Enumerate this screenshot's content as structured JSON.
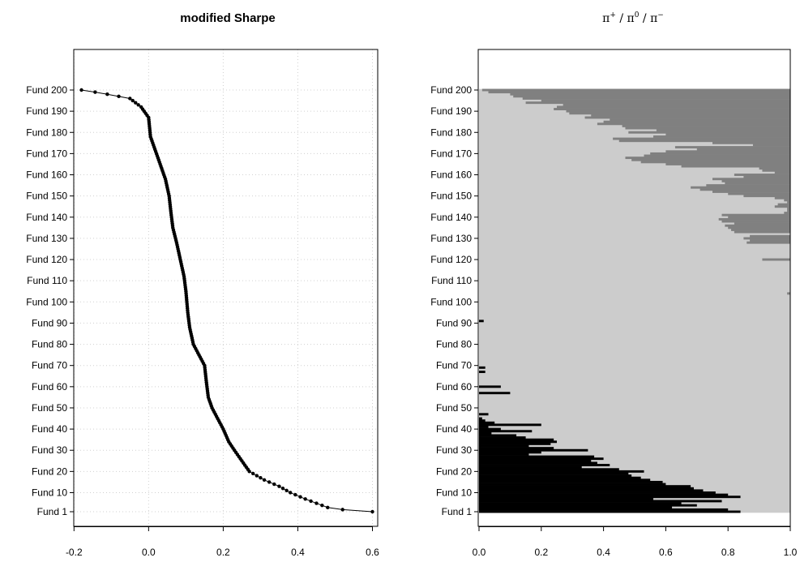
{
  "chart_data": [
    {
      "type": "scatter",
      "title": "modified Sharpe",
      "xlim": [
        -0.2,
        0.62
      ],
      "x_ticks": [
        -0.2,
        0.0,
        0.2,
        0.4,
        0.6
      ],
      "x_tick_labels": [
        "-0.2",
        "0.0",
        "0.2",
        "0.4",
        "0.6"
      ],
      "ylim": [
        1,
        200
      ],
      "y_ticks": [
        1,
        10,
        20,
        30,
        40,
        50,
        60,
        70,
        80,
        90,
        100,
        110,
        120,
        130,
        140,
        150,
        160,
        170,
        180,
        190,
        200
      ],
      "y_tick_labels": [
        "Fund 1",
        "Fund 10",
        "Fund 20",
        "Fund 30",
        "Fund 40",
        "Fund 50",
        "Fund 60",
        "Fund 70",
        "Fund 80",
        "Fund 90",
        "Fund 100",
        "Fund 110",
        "Fund 120",
        "Fund 130",
        "Fund 140",
        "Fund 150",
        "Fund 160",
        "Fund 170",
        "Fund 180",
        "Fund 190",
        "Fund 200"
      ],
      "grid": true,
      "curve_anchors": [
        [
          0.6,
          1
        ],
        [
          0.52,
          2
        ],
        [
          0.48,
          3
        ],
        [
          0.45,
          5
        ],
        [
          0.42,
          7
        ],
        [
          0.38,
          10
        ],
        [
          0.35,
          13
        ],
        [
          0.31,
          16
        ],
        [
          0.27,
          20
        ],
        [
          0.25,
          25
        ],
        [
          0.23,
          30
        ],
        [
          0.215,
          34
        ],
        [
          0.2,
          40
        ],
        [
          0.185,
          45
        ],
        [
          0.17,
          50
        ],
        [
          0.16,
          55
        ],
        [
          0.155,
          62
        ],
        [
          0.15,
          70
        ],
        [
          0.135,
          75
        ],
        [
          0.12,
          80
        ],
        [
          0.11,
          88
        ],
        [
          0.105,
          95
        ],
        [
          0.1,
          105
        ],
        [
          0.095,
          112
        ],
        [
          0.085,
          120
        ],
        [
          0.075,
          128
        ],
        [
          0.065,
          135
        ],
        [
          0.06,
          142
        ],
        [
          0.055,
          150
        ],
        [
          0.045,
          158
        ],
        [
          0.035,
          163
        ],
        [
          0.025,
          168
        ],
        [
          0.005,
          178
        ],
        [
          0.0,
          187
        ],
        [
          -0.02,
          192
        ],
        [
          -0.05,
          196
        ],
        [
          -0.08,
          197
        ],
        [
          -0.12,
          198.3
        ],
        [
          -0.15,
          199.2
        ],
        [
          -0.18,
          200
        ]
      ]
    },
    {
      "type": "bar",
      "orientation": "horizontal",
      "stacked": true,
      "title_parts": [
        "π",
        "+",
        " / π",
        "0",
        " / π",
        "−"
      ],
      "xlim": [
        0,
        1
      ],
      "x_ticks": [
        0.0,
        0.2,
        0.4,
        0.6,
        0.8,
        1.0
      ],
      "x_tick_labels": [
        "0.0",
        "0.2",
        "0.4",
        "0.6",
        "0.8",
        "1.0"
      ],
      "y_ticks": [
        1,
        10,
        20,
        30,
        40,
        50,
        60,
        70,
        80,
        90,
        100,
        110,
        120,
        130,
        140,
        150,
        160,
        170,
        180,
        190,
        200
      ],
      "y_tick_labels": [
        "Fund 1",
        "Fund 10",
        "Fund 20",
        "Fund 30",
        "Fund 40",
        "Fund 50",
        "Fund 60",
        "Fund 70",
        "Fund 80",
        "Fund 90",
        "Fund 100",
        "Fund 110",
        "Fund 120",
        "Fund 130",
        "Fund 140",
        "Fund 150",
        "Fund 160",
        "Fund 170",
        "Fund 180",
        "Fund 190",
        "Fund 200"
      ],
      "colors": {
        "pi_plus": "#000000",
        "pi_zero": "#cccccc",
        "pi_minus": "#808080"
      },
      "pi_plus": [
        [
          1,
          0.84
        ],
        [
          2,
          0.8
        ],
        [
          3,
          0.62
        ],
        [
          4,
          0.7
        ],
        [
          5,
          0.65
        ],
        [
          6,
          0.78
        ],
        [
          7,
          0.56
        ],
        [
          8,
          0.84
        ],
        [
          9,
          0.8
        ],
        [
          10,
          0.76
        ],
        [
          11,
          0.72
        ],
        [
          12,
          0.69
        ],
        [
          13,
          0.68
        ],
        [
          14,
          0.6
        ],
        [
          15,
          0.59
        ],
        [
          16,
          0.55
        ],
        [
          17,
          0.52
        ],
        [
          18,
          0.49
        ],
        [
          19,
          0.48
        ],
        [
          20,
          0.53
        ],
        [
          21,
          0.45
        ],
        [
          22,
          0.33
        ],
        [
          23,
          0.42
        ],
        [
          24,
          0.38
        ],
        [
          25,
          0.36
        ],
        [
          26,
          0.4
        ],
        [
          27,
          0.37
        ],
        [
          28,
          0.16
        ],
        [
          29,
          0.2
        ],
        [
          30,
          0.35
        ],
        [
          31,
          0.24
        ],
        [
          32,
          0.16
        ],
        [
          33,
          0.23
        ],
        [
          34,
          0.25
        ],
        [
          35,
          0.24
        ],
        [
          36,
          0.15
        ],
        [
          37,
          0.12
        ],
        [
          38,
          0.04
        ],
        [
          39,
          0.17
        ],
        [
          40,
          0.07
        ],
        [
          41,
          0.03
        ],
        [
          42,
          0.2
        ],
        [
          43,
          0.05
        ],
        [
          44,
          0.02
        ],
        [
          45,
          0.01
        ],
        [
          46,
          0.0
        ],
        [
          47,
          0.03
        ],
        [
          48,
          0.0
        ],
        [
          49,
          0.0
        ],
        [
          50,
          0.0
        ],
        [
          51,
          0.0
        ],
        [
          52,
          0.0
        ],
        [
          53,
          0.0
        ],
        [
          54,
          0.0
        ],
        [
          55,
          0.0
        ],
        [
          56,
          0.0
        ],
        [
          57,
          0.1
        ],
        [
          58,
          0.0
        ],
        [
          59,
          0.0
        ],
        [
          60,
          0.07
        ],
        [
          61,
          0.0
        ],
        [
          62,
          0.0
        ],
        [
          63,
          0.0
        ],
        [
          64,
          0.0
        ],
        [
          65,
          0.0
        ],
        [
          66,
          0.0
        ],
        [
          67,
          0.02
        ],
        [
          68,
          0.0
        ],
        [
          69,
          0.02
        ],
        [
          70,
          0.0
        ],
        [
          71,
          0.0
        ],
        [
          72,
          0.0
        ],
        [
          73,
          0.0
        ],
        [
          74,
          0.0
        ],
        [
          75,
          0.0
        ],
        [
          76,
          0.0
        ],
        [
          77,
          0.0
        ],
        [
          78,
          0.0
        ],
        [
          79,
          0.0
        ],
        [
          80,
          0.0
        ],
        [
          81,
          0.0
        ],
        [
          82,
          0.0
        ],
        [
          83,
          0.0
        ],
        [
          84,
          0.0
        ],
        [
          85,
          0.0
        ],
        [
          86,
          0.0
        ],
        [
          87,
          0.0
        ],
        [
          88,
          0.0
        ],
        [
          89,
          0.0
        ],
        [
          90,
          0.0
        ],
        [
          91,
          0.015
        ],
        [
          92,
          0.0
        ],
        [
          93,
          0.0
        ],
        [
          94,
          0.0
        ],
        [
          95,
          0.0
        ],
        [
          96,
          0.0
        ],
        [
          97,
          0.0
        ],
        [
          98,
          0.0
        ],
        [
          99,
          0.0
        ],
        [
          100,
          0.0
        ]
      ],
      "pi_minus": [
        [
          104,
          0.01
        ],
        [
          120,
          0.09
        ],
        [
          128,
          0.14
        ],
        [
          129,
          0.13
        ],
        [
          130,
          0.15
        ],
        [
          131,
          0.13
        ],
        [
          133,
          0.18
        ],
        [
          134,
          0.19
        ],
        [
          135,
          0.2
        ],
        [
          136,
          0.21
        ],
        [
          137,
          0.18
        ],
        [
          138,
          0.22
        ],
        [
          139,
          0.23
        ],
        [
          140,
          0.2
        ],
        [
          141,
          0.22
        ],
        [
          142,
          0.02
        ],
        [
          143,
          0.01
        ],
        [
          144,
          0.01
        ],
        [
          145,
          0.05
        ],
        [
          146,
          0.04
        ],
        [
          147,
          0.01
        ],
        [
          148,
          0.02
        ],
        [
          149,
          0.05
        ],
        [
          150,
          0.15
        ],
        [
          151,
          0.2
        ],
        [
          152,
          0.25
        ],
        [
          153,
          0.29
        ],
        [
          154,
          0.32
        ],
        [
          155,
          0.27
        ],
        [
          156,
          0.21
        ],
        [
          157,
          0.22
        ],
        [
          158,
          0.25
        ],
        [
          159,
          0.15
        ],
        [
          160,
          0.18
        ],
        [
          161,
          0.05
        ],
        [
          162,
          0.09
        ],
        [
          163,
          0.1
        ],
        [
          164,
          0.35
        ],
        [
          165,
          0.4
        ],
        [
          166,
          0.48
        ],
        [
          167,
          0.51
        ],
        [
          168,
          0.53
        ],
        [
          169,
          0.47
        ],
        [
          170,
          0.45
        ],
        [
          171,
          0.4
        ],
        [
          172,
          0.3
        ],
        [
          173,
          0.37
        ],
        [
          174,
          0.12
        ],
        [
          175,
          0.25
        ],
        [
          176,
          0.55
        ],
        [
          177,
          0.57
        ],
        [
          178,
          0.44
        ],
        [
          179,
          0.4
        ],
        [
          180,
          0.52
        ],
        [
          181,
          0.43
        ],
        [
          182,
          0.53
        ],
        [
          183,
          0.54
        ],
        [
          184,
          0.62
        ],
        [
          185,
          0.6
        ],
        [
          186,
          0.58
        ],
        [
          187,
          0.66
        ],
        [
          188,
          0.64
        ],
        [
          189,
          0.71
        ],
        [
          190,
          0.72
        ],
        [
          191,
          0.76
        ],
        [
          192,
          0.75
        ],
        [
          193,
          0.73
        ],
        [
          194,
          0.85
        ],
        [
          195,
          0.8
        ],
        [
          196,
          0.86
        ],
        [
          197,
          0.89
        ],
        [
          198,
          0.9
        ],
        [
          199,
          0.97
        ],
        [
          200,
          0.99
        ]
      ]
    }
  ]
}
